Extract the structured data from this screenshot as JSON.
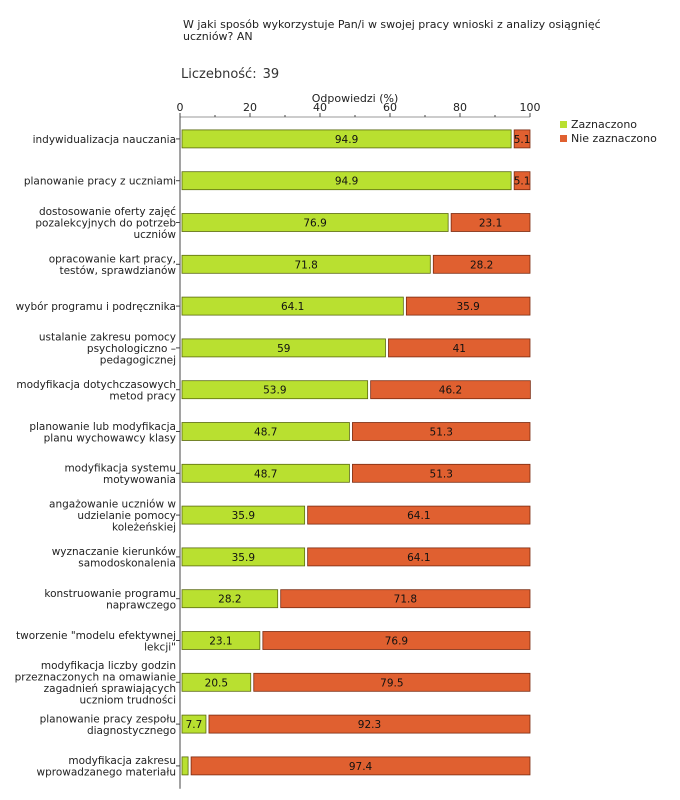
{
  "title": "W jaki sposób wykorzystuje Pan/i w swojej pracy wnioski z analizy osiągnięć uczniów? AN",
  "count_label": "Liczebność:",
  "count_value": "39",
  "colors": {
    "selected": "#b9e030",
    "not_selected": "#e06030",
    "bar_border": "#5a6a10",
    "bar_border2": "#7a2a10",
    "axis": "#999999"
  },
  "chart_data": {
    "type": "bar",
    "orientation": "horizontal",
    "stacked": true,
    "title": "W jaki sposób wykorzystuje Pan/i w swojej pracy wnioski z analizy osiągnięć uczniów? AN",
    "xlabel": "Odpowiedzi (%)",
    "ylabel": "",
    "xlim": [
      0,
      100
    ],
    "xticks": [
      0,
      20,
      40,
      60,
      80,
      100
    ],
    "legend_position": "top-right",
    "categories": [
      [
        "indywidualizacja nauczania"
      ],
      [
        "planowanie pracy z uczniami"
      ],
      [
        "dostosowanie oferty zajęć",
        "pozalekcyjnych do potrzeb",
        "uczniów"
      ],
      [
        "opracowanie kart pracy,",
        "testów, sprawdzianów"
      ],
      [
        "wybór programu i podręcznika"
      ],
      [
        "ustalanie zakresu pomocy",
        "psychologiczno –",
        "pedagogicznej"
      ],
      [
        "modyfikacja dotychczasowych",
        "metod pracy"
      ],
      [
        "planowanie lub modyfikacja",
        "planu wychowawcy klasy"
      ],
      [
        "modyfikacja systemu",
        "motywowania"
      ],
      [
        "angażowanie uczniów w",
        "udzielanie pomocy",
        "koleżeńskiej"
      ],
      [
        "wyznaczanie kierunków",
        "samodoskonalenia"
      ],
      [
        "konstruowanie programu",
        "naprawczego"
      ],
      [
        "tworzenie \"modelu efektywnej",
        "lekcji\""
      ],
      [
        "modyfikacja liczby godzin",
        "przeznaczonych na omawianie",
        "zagadnień sprawiających",
        "uczniom trudności"
      ],
      [
        "planowanie pracy zespołu",
        "diagnostycznego"
      ],
      [
        "modyfikacja zakresu",
        "wprowadzanego materiału"
      ]
    ],
    "series": [
      {
        "name": "Zaznaczono",
        "values": [
          94.9,
          94.9,
          76.9,
          71.8,
          64.1,
          59,
          53.9,
          48.7,
          48.7,
          35.9,
          35.9,
          28.2,
          23.1,
          20.5,
          7.7,
          2.6
        ],
        "labels": [
          "94.9",
          "94.9",
          "76.9",
          "71.8",
          "64.1",
          "59",
          "53.9",
          "48.7",
          "48.7",
          "35.9",
          "35.9",
          "28.2",
          "23.1",
          "20.5",
          "7.7",
          ""
        ]
      },
      {
        "name": "Nie zaznaczono",
        "values": [
          5.1,
          5.1,
          23.1,
          28.2,
          35.9,
          41,
          46.2,
          51.3,
          51.3,
          64.1,
          64.1,
          71.8,
          76.9,
          79.5,
          92.3,
          97.4
        ],
        "labels": [
          "5.1",
          "5.1",
          "23.1",
          "28.2",
          "35.9",
          "41",
          "46.2",
          "51.3",
          "51.3",
          "64.1",
          "64.1",
          "71.8",
          "76.9",
          "79.5",
          "92.3",
          "97.4"
        ]
      }
    ]
  }
}
